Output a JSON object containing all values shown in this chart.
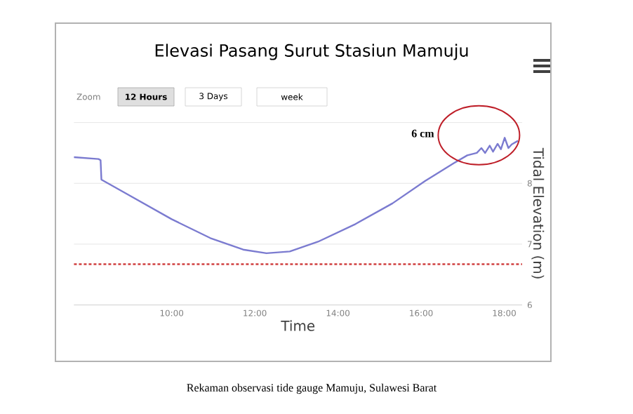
{
  "chart_data": {
    "type": "line",
    "title": "Elevasi Pasang Surut Stasiun Mamuju",
    "xlabel": "Time",
    "ylabel": "Tidal Elevation (m)",
    "x": [
      7.65,
      8.24,
      8.29,
      8.31,
      8.91,
      10.0,
      10.93,
      11.72,
      12.28,
      12.84,
      13.52,
      14.42,
      15.31,
      16.1,
      16.78,
      17.11,
      17.34,
      17.45,
      17.54,
      17.65,
      17.73,
      17.84,
      17.92,
      18.01,
      18.1,
      18.18,
      18.33
    ],
    "series": [
      {
        "color": "#7b7bd0",
        "values": [
          8.43,
          8.4,
          8.38,
          8.06,
          7.83,
          7.41,
          7.1,
          6.91,
          6.85,
          6.88,
          7.04,
          7.33,
          7.67,
          8.04,
          8.33,
          8.46,
          8.5,
          8.58,
          8.5,
          8.62,
          8.52,
          8.65,
          8.56,
          8.75,
          8.58,
          8.64,
          8.7
        ]
      }
    ],
    "xlim": [
      7.65,
      18.43
    ],
    "xticks": [
      {
        "value": 10,
        "label": "10:00"
      },
      {
        "value": 12,
        "label": "12:00"
      },
      {
        "value": 14,
        "label": "14:00"
      },
      {
        "value": 16,
        "label": "16:00"
      },
      {
        "value": 18,
        "label": "18:00"
      }
    ],
    "ylim": [
      6,
      9
    ],
    "yticks": [
      6,
      7,
      8,
      {
        "value": 9,
        "label": null
      }
    ],
    "grid": "y",
    "marker": "none",
    "line_style": "solid",
    "ref_lines": [
      {
        "axis": "y",
        "value": 6.67,
        "color": "#d04040",
        "line_style": "dashed"
      }
    ],
    "annotations": [
      "Zoom",
      "12 Hours",
      "3 Days",
      "week",
      "6 cm",
      "Rekaman observasi tide gauge Mamuju, Sulawesi Barat"
    ]
  }
}
